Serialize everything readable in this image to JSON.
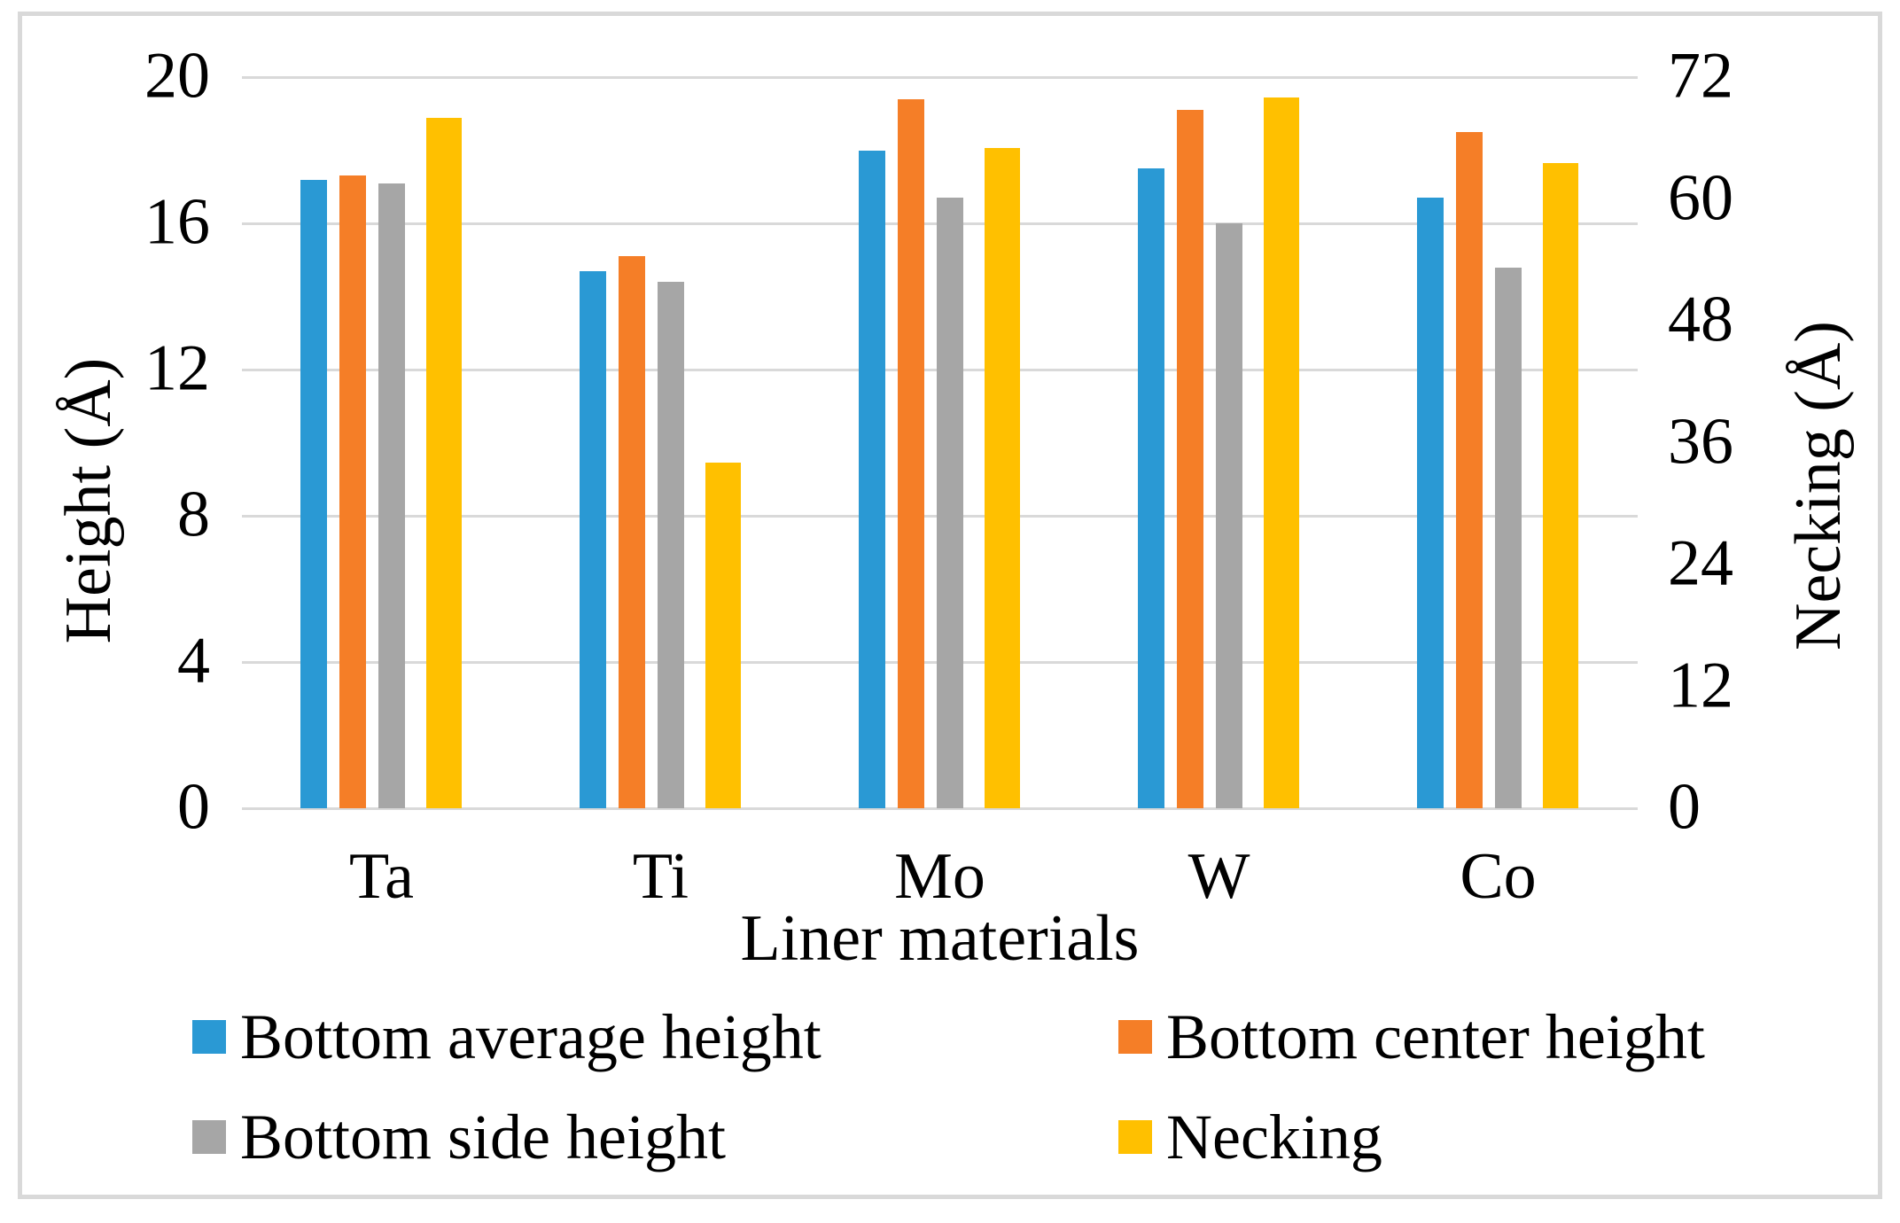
{
  "chart_data": {
    "type": "bar",
    "title": "",
    "categories": [
      "Ta",
      "Ti",
      "Mo",
      "W",
      "Co"
    ],
    "series": [
      {
        "name": "Bottom average height",
        "axis": "left",
        "color": "#2a99d4",
        "values": [
          17.2,
          14.7,
          18.0,
          17.5,
          16.7
        ]
      },
      {
        "name": "Bottom center height",
        "axis": "left",
        "color": "#f57e27",
        "values": [
          17.3,
          15.1,
          19.4,
          19.1,
          18.5
        ]
      },
      {
        "name": "Bottom side height",
        "axis": "left",
        "color": "#a6a6a6",
        "values": [
          17.1,
          14.4,
          16.7,
          16.0,
          14.8
        ]
      },
      {
        "name": "Necking",
        "axis": "right",
        "color": "#ffc000",
        "values": [
          68,
          34,
          65,
          70,
          63.5
        ]
      }
    ],
    "xlabel": "Liner materials",
    "ylabel_left": "Height (Å)",
    "ylabel_right": "Necking (Å)",
    "ylim_left": [
      0,
      20
    ],
    "ylim_right": [
      0,
      72
    ],
    "yticks_left": [
      0,
      4,
      8,
      12,
      16,
      20
    ],
    "yticks_right": [
      0,
      12,
      24,
      36,
      48,
      60,
      72
    ],
    "grid": true,
    "legend_position": "bottom",
    "colors": {
      "gridline": "#d9d9d9",
      "frame_border": "#d9d9d9",
      "text": "#000000",
      "background": "#ffffff"
    }
  }
}
